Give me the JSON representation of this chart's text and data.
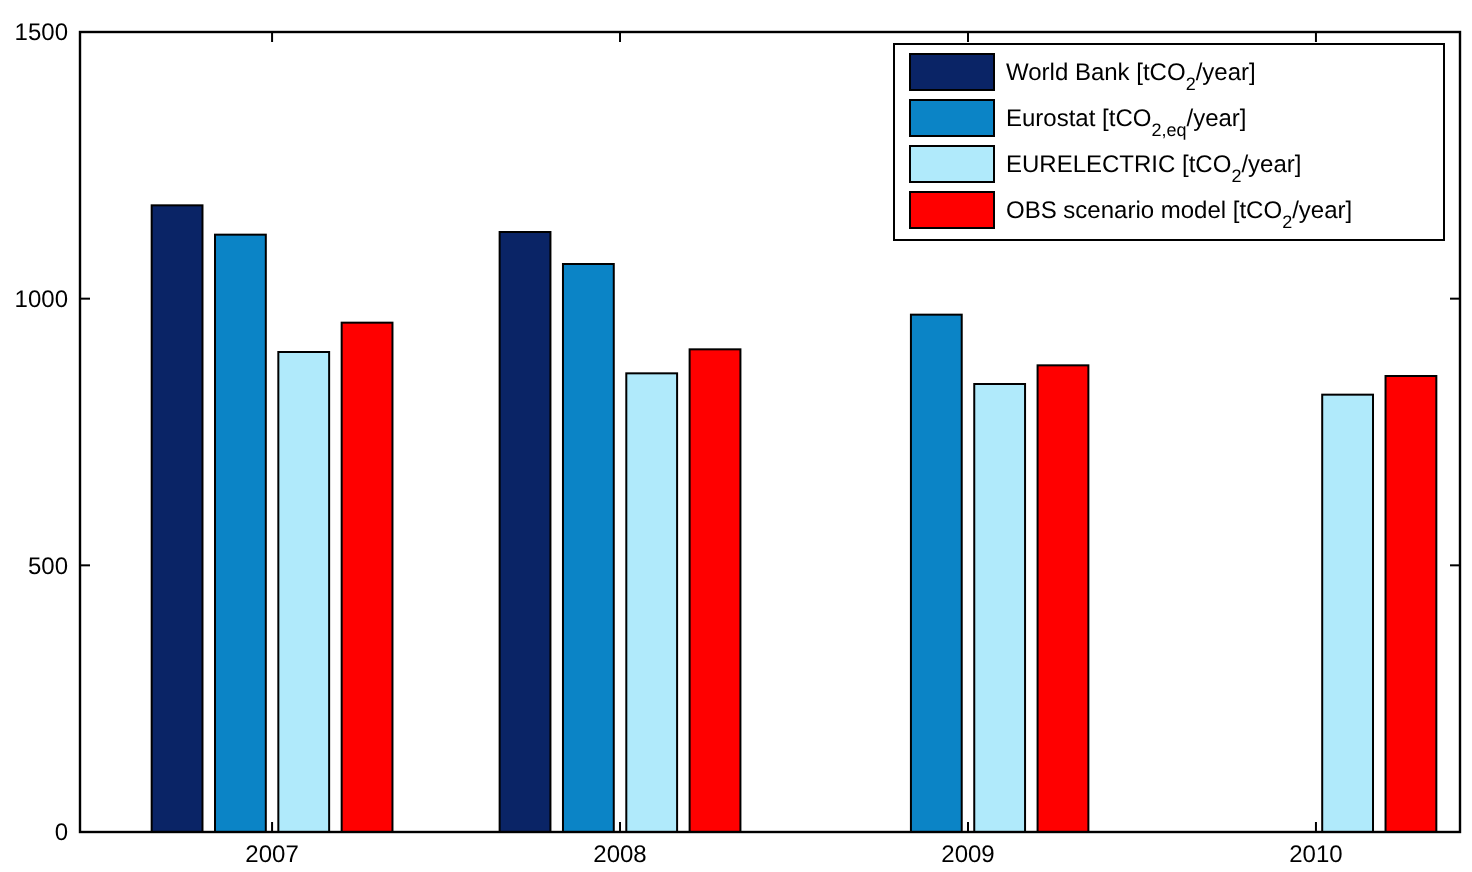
{
  "chart_data": {
    "type": "bar",
    "categories": [
      "2007",
      "2008",
      "2009",
      "2010"
    ],
    "series": [
      {
        "name": "World Bank [tCO$_{2}$/year]",
        "color": "#0a2466",
        "values": [
          1175,
          1125,
          null,
          null
        ]
      },
      {
        "name": "Eurostat [tCO$_{2,eq}$/year]",
        "color": "#0b84c6",
        "values": [
          1120,
          1065,
          970,
          null
        ]
      },
      {
        "name": "EURELECTRIC [tCO$_{2}$/year]",
        "color": "#b0eafb",
        "values": [
          900,
          860,
          840,
          820
        ]
      },
      {
        "name": "OBS scenario model [tCO$_{2}$/year]",
        "color": "#ff0000",
        "values": [
          955,
          905,
          875,
          855
        ]
      }
    ],
    "ylim": [
      0,
      1500
    ],
    "yticks": [
      0,
      500,
      1000,
      1500
    ],
    "grid": false,
    "legend": "top right"
  }
}
